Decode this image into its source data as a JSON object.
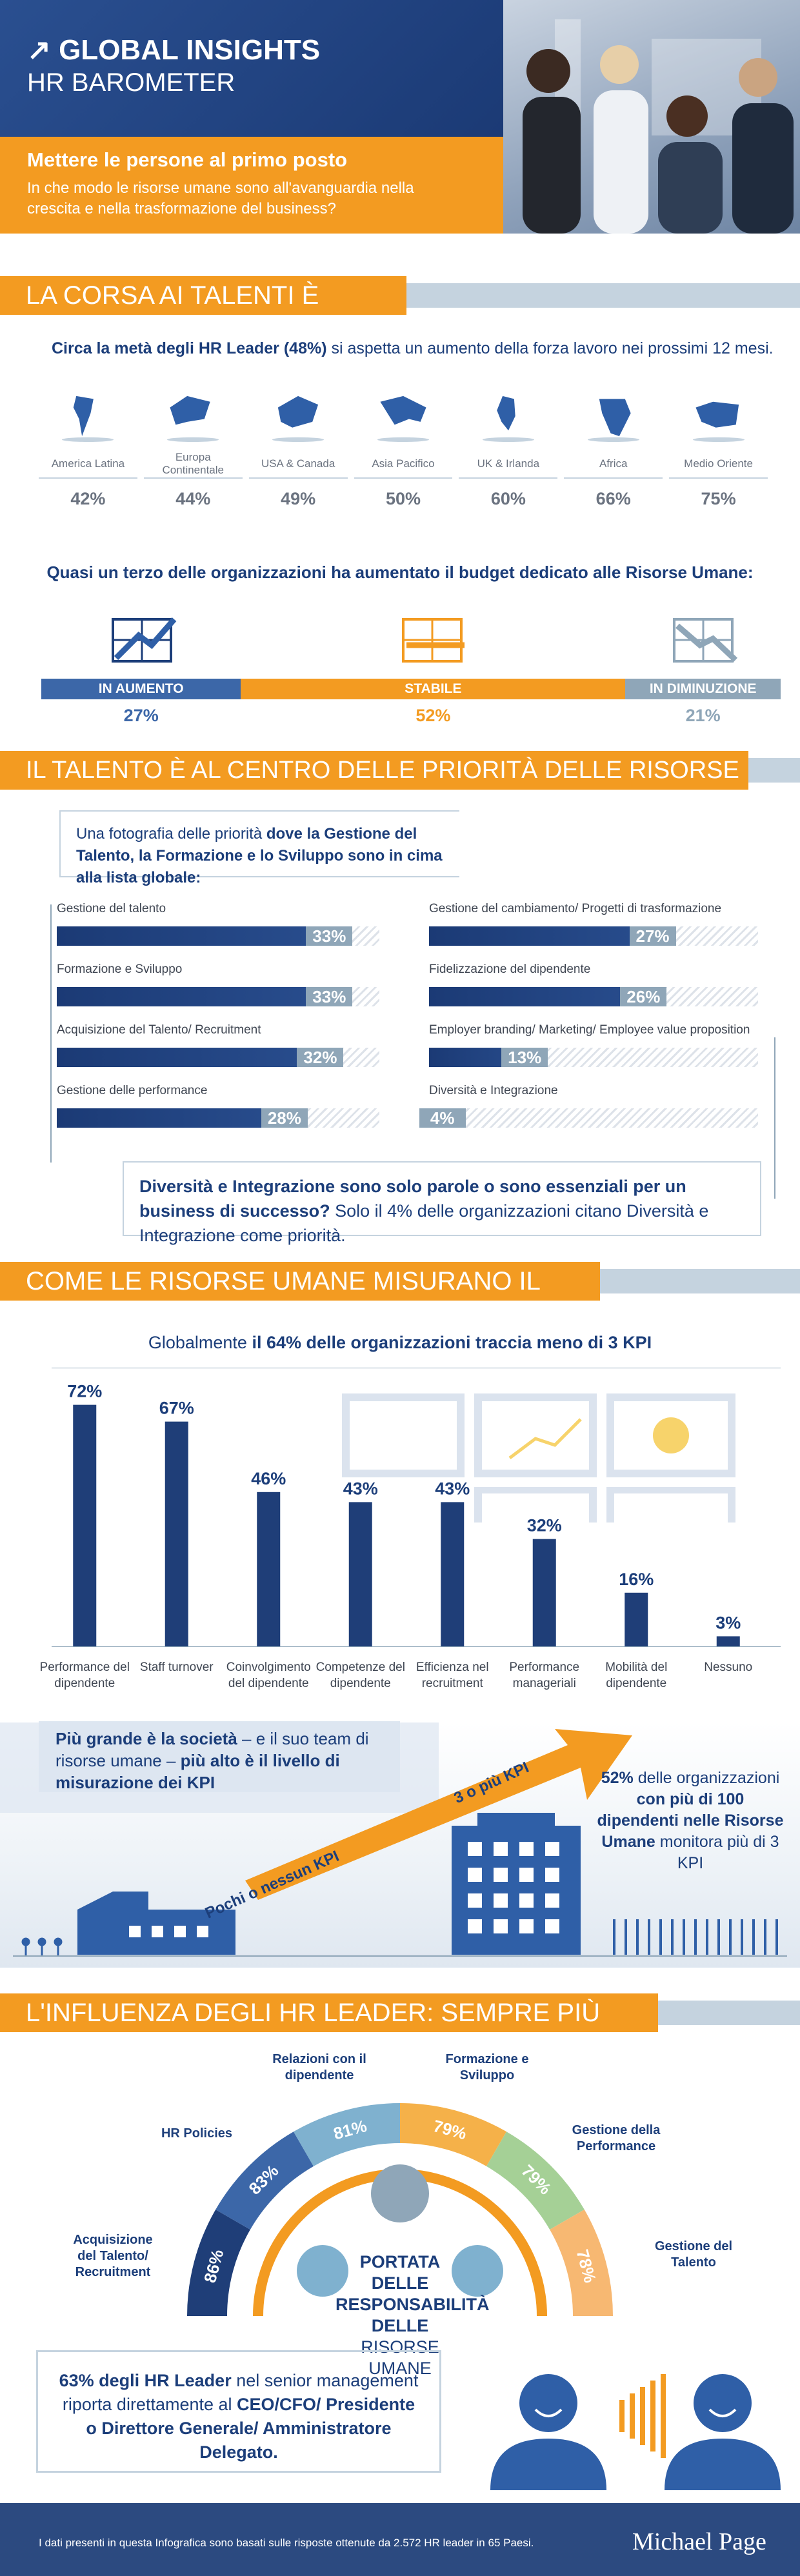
{
  "header": {
    "title": "GLOBAL INSIGHTS",
    "subtitle": "HR BAROMETER",
    "arrow": "arrow-up-right-icon",
    "lead": "Mettere le persone al primo posto",
    "question": "In che modo le risorse umane sono all'avanguardia nella crescita e nella trasformazione del business?"
  },
  "s1": {
    "title": "LA CORSA AI TALENTI È RIPARTITA",
    "intro_bold": "Circa la metà degli HR Leader (48%)",
    "intro_rest": " si aspetta un aumento della forza lavoro nei prossimi 12 mesi.",
    "regions": [
      {
        "name": "America Latina",
        "value": "42%"
      },
      {
        "name": "Europa Continentale",
        "value": "44%"
      },
      {
        "name": "USA & Canada",
        "value": "49%"
      },
      {
        "name": "Asia Pacifico",
        "value": "50%"
      },
      {
        "name": "UK & Irlanda",
        "value": "60%"
      },
      {
        "name": "Africa",
        "value": "66%"
      },
      {
        "name": "Medio Oriente",
        "value": "75%"
      }
    ],
    "budget_title": "Quasi un terzo delle organizzazioni ha aumentato il budget dedicato alle Risorse Umane:",
    "budget": [
      {
        "label": "IN AUMENTO",
        "value": "27%",
        "share": 27
      },
      {
        "label": "STABILE",
        "value": "52%",
        "share": 52
      },
      {
        "label": "IN DIMINUZIONE",
        "value": "21%",
        "share": 21
      }
    ]
  },
  "s2": {
    "title": "IL TALENTO È AL CENTRO DELLE PRIORITÀ DELLE RISORSE UMANE",
    "intro_a": "Una fotografia delle priorità ",
    "intro_b": "dove la Gestione del Talento, la Formazione e lo Sviluppo sono in cima alla lista globale:",
    "left": [
      {
        "label": "Gestione del talento",
        "value": "33%",
        "share": 33
      },
      {
        "label": "Formazione e Sviluppo",
        "value": "33%",
        "share": 33
      },
      {
        "label": "Acquisizione del Talento/ Recruitment",
        "value": "32%",
        "share": 32
      },
      {
        "label": "Gestione delle performance",
        "value": "28%",
        "share": 28
      }
    ],
    "right": [
      {
        "label": "Gestione del cambiamento/ Progetti di trasformazione",
        "value": "27%",
        "share": 27
      },
      {
        "label": "Fidelizzazione del dipendente",
        "value": "26%",
        "share": 26
      },
      {
        "label": "Employer branding/ Marketing/ Employee value proposition",
        "value": "13%",
        "share": 13
      },
      {
        "label": "Diversità e Integrazione",
        "value": "4%",
        "share": 4
      }
    ],
    "note_bold": "Diversità e Integrazione sono solo parole o sono essenziali per un business di successo?",
    "note_rest": " Solo il 4% delle organizzazioni citano Diversità e Integrazione come priorità."
  },
  "s3": {
    "title": "COME LE RISORSE UMANE MISURANO IL SUCCESSO",
    "lead_a": "Globalmente ",
    "lead_b": "il 64% delle organizzazioni traccia meno di 3 KPI",
    "side_a": "Più grande è la società",
    "side_b": " – e il suo team di risorse umane – ",
    "side_c": "più alto è il livello di misurazione dei KPI",
    "right_a": "52%",
    "right_b": " delle organizzazioni ",
    "right_c": "con più di 100 dipendenti nelle Risorse Umane",
    "right_d": " monitora più di 3 KPI",
    "arrow_low": "Pochi o nessun KPI",
    "arrow_high": "3 o più KPI"
  },
  "chart_data": {
    "type": "bar",
    "categories": [
      "Performance del dipendente",
      "Staff turnover",
      "Coinvolgimento del dipendente",
      "Competenze del dipendente",
      "Efficienza nel recruitment",
      "Performance manageriali",
      "Mobilità del dipendente",
      "Nessuno"
    ],
    "values": [
      72,
      67,
      46,
      43,
      43,
      32,
      16,
      3
    ],
    "labels": [
      "72%",
      "67%",
      "46%",
      "43%",
      "43%",
      "32%",
      "16%",
      "3%"
    ],
    "ylim": [
      0,
      80
    ]
  },
  "s4": {
    "title": "L'INFLUENZA DEGLI HR LEADER: SEMPRE PIÙ STRATEGICA",
    "arc": [
      {
        "label": "Acquisizione del Talento/ Recruitment",
        "value": "86%"
      },
      {
        "label": "HR Policies",
        "value": "83%"
      },
      {
        "label": "Relazioni con il dipendente",
        "value": "81%"
      },
      {
        "label": "Formazione e Sviluppo",
        "value": "79%"
      },
      {
        "label": "Gestione della Performance",
        "value": "79%"
      },
      {
        "label": "Gestione del Talento",
        "value": "78%"
      }
    ],
    "center_a": "PORTATA DELLE RESPONSABILITÀ",
    "center_b": "DELLE",
    "center_c": " RISORSE UMANE",
    "box_a": "63% degli HR Leader",
    "box_b": " nel senior management riporta direttamente al ",
    "box_c": "CEO/CFO/ Presidente o Direttore Generale/ Amministratore Delegato."
  },
  "footer": {
    "note": "I dati presenti in questa Infografica sono basati sulle risposte ottenute da 2.572 HR leader in 65 Paesi.",
    "brand": "Michael Page"
  },
  "colors": {
    "navy": "#1c3e7a",
    "orange": "#f39b21",
    "blue": "#2f5fa7",
    "grey": "#8fa6b8"
  }
}
